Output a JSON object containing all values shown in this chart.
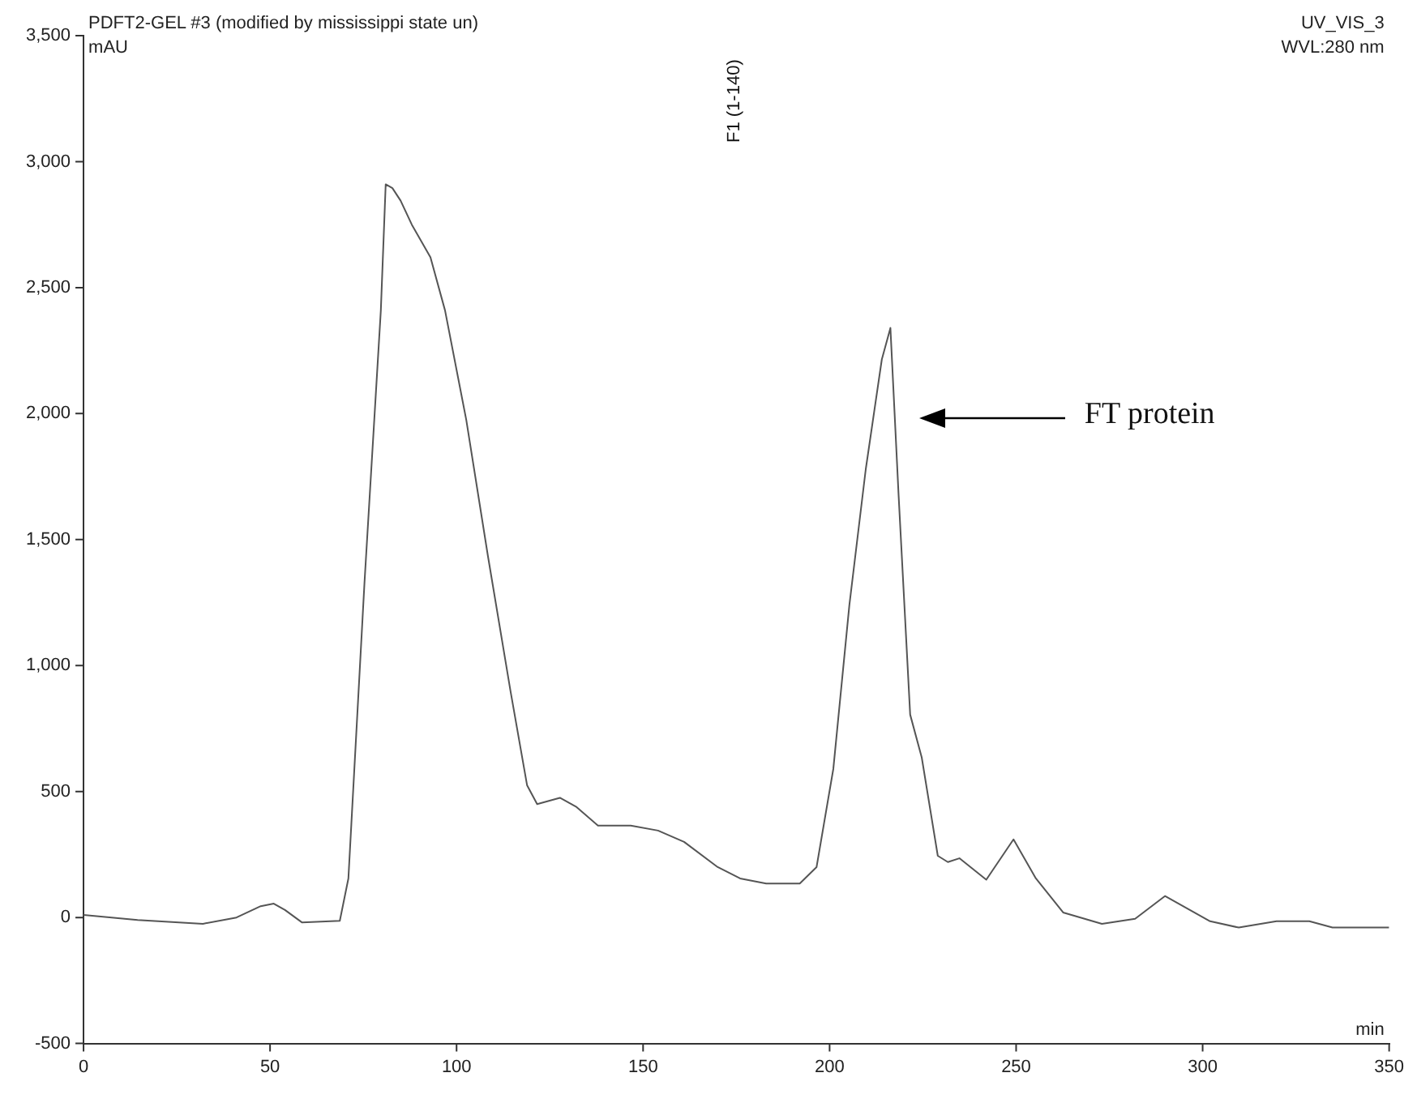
{
  "chart_data": {
    "type": "line",
    "title": "PDFT2-GEL #3 (modified by mississippi state un)",
    "xlabel": "min",
    "ylabel": "mAU",
    "x": [
      0,
      14.5,
      32,
      41,
      47.5,
      51,
      54,
      58.6,
      68.7,
      71,
      75.3,
      79.7,
      81,
      82.8,
      85,
      88,
      93,
      96.9,
      102.6,
      108.4,
      114.5,
      118.9,
      121.6,
      127.7,
      132,
      137.9,
      146.7,
      154,
      161,
      170,
      176,
      183,
      192,
      196.5,
      201,
      205.3,
      209.7,
      214,
      216.3,
      218.5,
      221.6,
      224.7,
      229,
      231.7,
      234.8,
      242,
      249.3,
      255.3,
      262.6,
      273,
      281.9,
      289.9,
      302,
      309.7,
      319.8,
      328.6,
      334.8,
      345,
      350
    ],
    "series": [
      {
        "color": "#555555",
        "values": [
          10,
          -10,
          -25,
          0,
          45,
          55,
          30,
          -20,
          -13,
          155,
          1325,
          2410,
          2910,
          2895,
          2845,
          2750,
          2620,
          2410,
          1975,
          1435,
          895,
          525,
          450,
          475,
          440,
          365,
          365,
          345,
          300,
          200,
          155,
          135,
          135,
          200,
          590,
          1240,
          1780,
          2215,
          2340,
          1675,
          805,
          635,
          245,
          220,
          235,
          150,
          310,
          155,
          20,
          -25,
          -5,
          85,
          -15,
          -40,
          -15,
          -15,
          -40,
          -40,
          -40
        ]
      }
    ],
    "xlim": [
      0,
      350
    ],
    "xticks": [
      0,
      50,
      100,
      150,
      200,
      250,
      300,
      350
    ],
    "ylim": [
      -500,
      3500
    ],
    "yticks": [
      -500,
      0,
      500,
      {
        "value": 1000,
        "label": "1,000"
      },
      {
        "value": 1500,
        "label": "1,500"
      },
      {
        "value": 2000,
        "label": "2,000"
      },
      {
        "value": 2500,
        "label": "2,500"
      },
      {
        "value": 3000,
        "label": "3,000"
      },
      {
        "value": 3500,
        "label": "3,500"
      }
    ],
    "grid": false,
    "legend": false,
    "marker": "none",
    "line_style": "solid",
    "annotations": [
      "UV_VIS_3",
      "WVL:280 nm",
      "F1 (1-140)",
      "FT protein"
    ]
  }
}
